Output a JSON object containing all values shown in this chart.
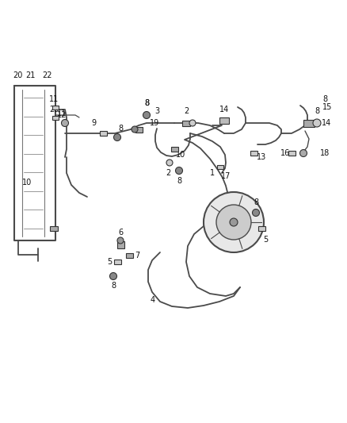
{
  "bg_color": "#ffffff",
  "line_color": "#4a4a4a",
  "label_color": "#111111",
  "fig_width": 4.38,
  "fig_height": 5.33,
  "dpi": 100
}
